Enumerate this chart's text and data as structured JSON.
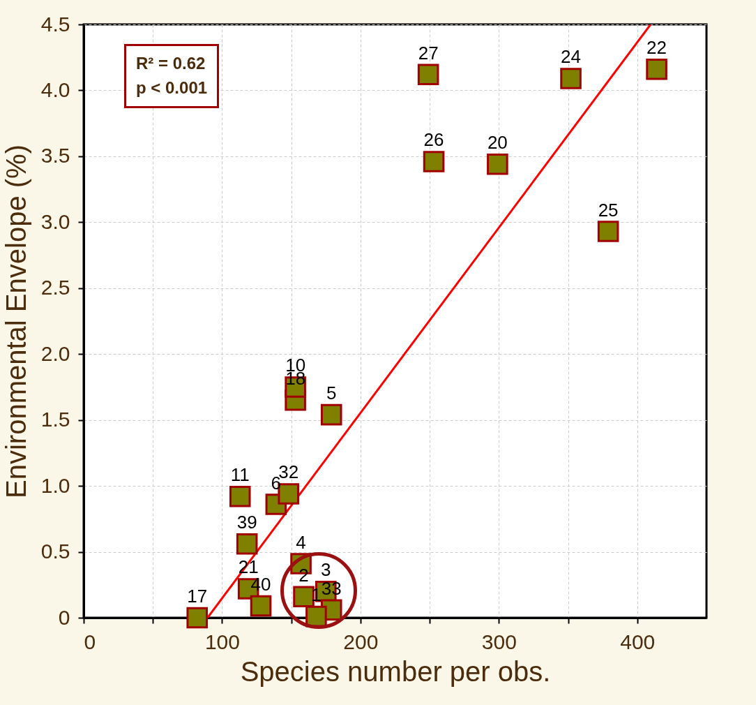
{
  "chart_data": {
    "type": "scatter",
    "xlabel": "Species number per obs.",
    "ylabel": "Environmental Envelope (%)",
    "xlim": [
      0,
      450
    ],
    "xticks": [
      0,
      {
        "value": 50,
        "label": null
      },
      100,
      {
        "value": 150,
        "label": null
      },
      200,
      {
        "value": 250,
        "label": null
      },
      300,
      {
        "value": 350,
        "label": null
      },
      400
    ],
    "ylim": [
      0,
      4.5
    ],
    "yticks": [
      0,
      0.5,
      {
        "value": 1,
        "label": "1.0"
      },
      1.5,
      {
        "value": 2,
        "label": "2.0"
      },
      2.5,
      {
        "value": 3,
        "label": "3.0"
      },
      3.5,
      {
        "value": 4,
        "label": "4.0"
      },
      4.5
    ],
    "grid": true,
    "annotations": [
      "R² = 0.62",
      "p < 0.001",
      {
        "text": "17",
        "x": 82,
        "y": 0
      },
      {
        "text": "11",
        "x": 113,
        "y": 0.92
      },
      {
        "text": "39",
        "x": 118,
        "y": 0.56
      },
      {
        "text": "21",
        "x": 119,
        "y": 0.22
      },
      {
        "text": "40",
        "x": 128,
        "y": 0.09
      },
      {
        "text": "6",
        "x": 139,
        "y": 0.86
      },
      {
        "text": "32",
        "x": 148,
        "y": 0.94
      },
      {
        "text": "10",
        "x": 153,
        "y": 1.75
      },
      {
        "text": "18",
        "x": 153,
        "y": 1.65
      },
      {
        "text": "4",
        "x": 157,
        "y": 0.41
      },
      {
        "text": "2",
        "x": 159,
        "y": 0.16
      },
      {
        "text": "3",
        "x": 175,
        "y": 0.2
      },
      {
        "text": "33",
        "x": 179,
        "y": 0.06
      },
      {
        "text": "1",
        "x": 168,
        "y": 0.01
      },
      {
        "text": "5",
        "x": 179,
        "y": 1.54
      },
      {
        "text": "27",
        "x": 249,
        "y": 4.12
      },
      {
        "text": "26",
        "x": 253,
        "y": 3.46
      },
      {
        "text": "20",
        "x": 299,
        "y": 3.44
      },
      {
        "text": "24",
        "x": 352,
        "y": 4.09
      },
      {
        "text": "25",
        "x": 379,
        "y": 2.93
      },
      {
        "text": "22",
        "x": 414,
        "y": 4.16
      }
    ],
    "series": [
      {
        "color": "#808000",
        "marker": "square",
        "x": [
          82,
          113,
          118,
          119,
          128,
          139,
          148,
          153,
          153,
          157,
          159,
          175,
          179,
          168,
          179,
          249,
          253,
          299,
          352,
          379,
          414
        ],
        "values": [
          0,
          0.92,
          0.56,
          0.22,
          0.09,
          0.86,
          0.94,
          1.65,
          1.75,
          0.41,
          0.16,
          0.2,
          0.06,
          0.01,
          1.54,
          4.12,
          3.46,
          3.44,
          4.09,
          2.93,
          4.16
        ]
      },
      {
        "type": "line",
        "color": "#ff0000",
        "x": [
          89.5,
          409.6
        ],
        "values": [
          0,
          4.5
        ]
      }
    ]
  }
}
